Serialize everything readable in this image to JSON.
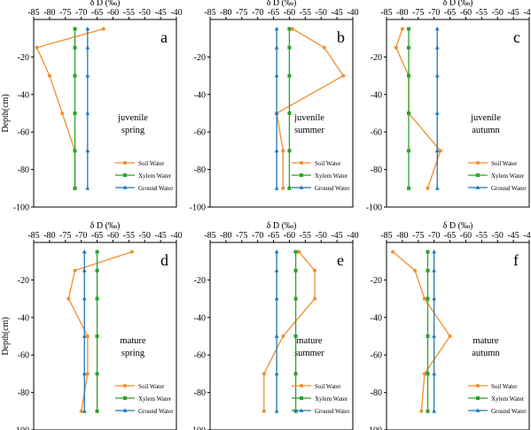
{
  "figure": {
    "ylabel": "Depth(cm)"
  },
  "legend_labels": [
    "Soil Water",
    "Xylem Water",
    "Ground Water"
  ],
  "colors": {
    "soil": "#F28E2B",
    "xylem": "#2CA02C",
    "ground": "#1F77B4"
  },
  "chart_data": [
    {
      "type": "line",
      "letter": "a",
      "annotation": [
        "juvenile",
        "spring"
      ],
      "xlabel": "δ D (‰)",
      "ylabel": "Depth(cm)",
      "xlim": [
        -85,
        -40
      ],
      "ylim": [
        -100,
        0
      ],
      "xticks": [
        -85,
        -80,
        -75,
        -70,
        -65,
        -60,
        -55,
        -50,
        -45,
        -40
      ],
      "yticks": [
        -20,
        -40,
        -60,
        -80,
        -100
      ],
      "series": [
        {
          "name": "Soil Water",
          "x": [
            -63,
            -84,
            -80,
            -76,
            -72,
            -72
          ],
          "y": [
            -5,
            -15,
            -30,
            -50,
            -70,
            -90
          ]
        },
        {
          "name": "Xylem Water",
          "x": [
            -72,
            -72,
            -72,
            -72,
            -72,
            -72
          ],
          "y": [
            -5,
            -15,
            -30,
            -50,
            -70,
            -90
          ]
        },
        {
          "name": "Ground Water",
          "x": [
            -68,
            -68,
            -68,
            -68,
            -68,
            -68
          ],
          "y": [
            -5,
            -15,
            -30,
            -50,
            -70,
            -90
          ]
        }
      ]
    },
    {
      "type": "line",
      "letter": "b",
      "annotation": [
        "juvenile",
        "summer"
      ],
      "xlabel": "δ D (‰)",
      "ylabel": "Depth(cm)",
      "xlim": [
        -85,
        -40
      ],
      "ylim": [
        -100,
        0
      ],
      "xticks": [
        -85,
        -80,
        -75,
        -70,
        -65,
        -60,
        -55,
        -50,
        -45,
        -40
      ],
      "yticks": [
        -20,
        -40,
        -60,
        -80,
        -100
      ],
      "series": [
        {
          "name": "Soil Water",
          "x": [
            -59,
            -49,
            -43,
            -64,
            -62,
            -62
          ],
          "y": [
            -5,
            -15,
            -30,
            -50,
            -70,
            -90
          ]
        },
        {
          "name": "Xylem Water",
          "x": [
            -60,
            -60,
            -60,
            -60,
            -60,
            -60
          ],
          "y": [
            -5,
            -15,
            -30,
            -50,
            -70,
            -90
          ]
        },
        {
          "name": "Ground Water",
          "x": [
            -64,
            -64,
            -64,
            -64,
            -64,
            -64
          ],
          "y": [
            -5,
            -15,
            -30,
            -50,
            -70,
            -90
          ]
        }
      ]
    },
    {
      "type": "line",
      "letter": "c",
      "annotation": [
        "juvenile",
        "autumn"
      ],
      "xlabel": "δ D (‰)",
      "ylabel": "Depth(cm)",
      "xlim": [
        -85,
        -40
      ],
      "ylim": [
        -100,
        0
      ],
      "xticks": [
        -85,
        -80,
        -75,
        -70,
        -65,
        -60,
        -55,
        -50,
        -45,
        -40
      ],
      "yticks": [
        -20,
        -40,
        -60,
        -80,
        -100
      ],
      "series": [
        {
          "name": "Soil Water",
          "x": [
            -80,
            -82,
            -78,
            -78,
            -68,
            -72
          ],
          "y": [
            -5,
            -15,
            -30,
            -50,
            -70,
            -90
          ]
        },
        {
          "name": "Xylem Water",
          "x": [
            -78,
            -78,
            -78,
            -78,
            -78,
            -78
          ],
          "y": [
            -5,
            -15,
            -30,
            -50,
            -70,
            -90
          ]
        },
        {
          "name": "Ground Water",
          "x": [
            -69,
            -69,
            -69,
            -69,
            -69,
            -69
          ],
          "y": [
            -5,
            -15,
            -30,
            -50,
            -70,
            -90
          ]
        }
      ]
    },
    {
      "type": "line",
      "letter": "d",
      "annotation": [
        "mature",
        "spring"
      ],
      "xlabel": "δ D (‰)",
      "ylabel": "Depth(cm)",
      "xlim": [
        -85,
        -40
      ],
      "ylim": [
        -100,
        0
      ],
      "xticks": [
        -85,
        -80,
        -75,
        -70,
        -65,
        -60,
        -55,
        -50,
        -45,
        -40
      ],
      "yticks": [
        -20,
        -40,
        -60,
        -80,
        -100
      ],
      "series": [
        {
          "name": "Soil Water",
          "x": [
            -54,
            -72,
            -74,
            -68,
            -68,
            -70
          ],
          "y": [
            -5,
            -15,
            -30,
            -50,
            -70,
            -90
          ]
        },
        {
          "name": "Xylem Water",
          "x": [
            -65,
            -65,
            -65,
            -65,
            -65,
            -65
          ],
          "y": [
            -5,
            -15,
            -30,
            -50,
            -70,
            -90
          ]
        },
        {
          "name": "Ground Water",
          "x": [
            -69,
            -69,
            -69,
            -69,
            -69,
            -69
          ],
          "y": [
            -5,
            -15,
            -30,
            -50,
            -70,
            -90
          ]
        }
      ]
    },
    {
      "type": "line",
      "letter": "e",
      "annotation": [
        "mature",
        "summer"
      ],
      "xlabel": "δ D (‰)",
      "ylabel": "Depth(cm)",
      "xlim": [
        -85,
        -40
      ],
      "ylim": [
        -100,
        0
      ],
      "xticks": [
        -85,
        -80,
        -75,
        -70,
        -65,
        -60,
        -55,
        -50,
        -45,
        -40
      ],
      "yticks": [
        -20,
        -40,
        -60,
        -80,
        -100
      ],
      "series": [
        {
          "name": "Soil Water",
          "x": [
            -57,
            -52,
            -52,
            -62,
            -68,
            -68
          ],
          "y": [
            -5,
            -15,
            -30,
            -50,
            -70,
            -90
          ]
        },
        {
          "name": "Xylem Water",
          "x": [
            -58,
            -58,
            -58,
            -58,
            -58,
            -58
          ],
          "y": [
            -5,
            -15,
            -30,
            -50,
            -70,
            -90
          ]
        },
        {
          "name": "Ground Water",
          "x": [
            -64,
            -64,
            -64,
            -64,
            -64,
            -64
          ],
          "y": [
            -5,
            -15,
            -30,
            -50,
            -70,
            -90
          ]
        }
      ]
    },
    {
      "type": "line",
      "letter": "f",
      "annotation": [
        "mature",
        "autumn"
      ],
      "xlabel": "δ D (‰)",
      "ylabel": "Depth(cm)",
      "xlim": [
        -85,
        -40
      ],
      "ylim": [
        -100,
        0
      ],
      "xticks": [
        -85,
        -80,
        -75,
        -70,
        -65,
        -60,
        -55,
        -50,
        -45,
        -40
      ],
      "yticks": [
        -20,
        -40,
        -60,
        -80,
        -100
      ],
      "series": [
        {
          "name": "Soil Water",
          "x": [
            -83,
            -76,
            -73,
            -65,
            -73,
            -74
          ],
          "y": [
            -5,
            -15,
            -30,
            -50,
            -70,
            -90
          ]
        },
        {
          "name": "Xylem Water",
          "x": [
            -72,
            -72,
            -72,
            -72,
            -72,
            -72
          ],
          "y": [
            -5,
            -15,
            -30,
            -50,
            -70,
            -90
          ]
        },
        {
          "name": "Ground Water",
          "x": [
            -70,
            -70,
            -70,
            -70,
            -70,
            -70
          ],
          "y": [
            -5,
            -15,
            -30,
            -50,
            -70,
            -90
          ]
        }
      ]
    }
  ]
}
